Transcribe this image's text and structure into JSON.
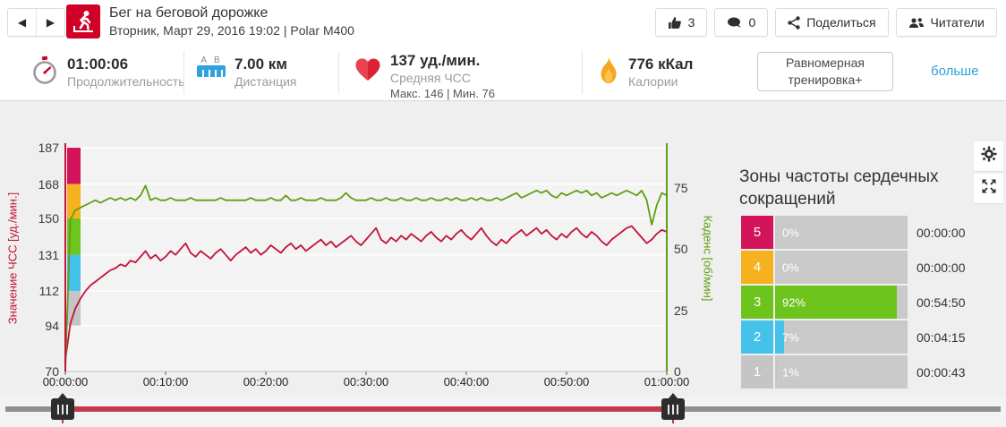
{
  "header": {
    "nav": {
      "prev_icon": "◀",
      "next_icon": "▶"
    },
    "sport_title": "Бег на беговой дорожке",
    "subtitle": "Вторник, Март 29, 2016 19:02 | Polar M400",
    "like_count": "3",
    "comment_count": "0",
    "share_label": "Поделиться",
    "readers_label": "Читатели"
  },
  "stats": {
    "duration": {
      "value": "01:00:06",
      "label": "Продолжительность"
    },
    "distance": {
      "value": "7.00 км",
      "label": "Дистанция",
      "marker_a": "A",
      "marker_b": "B"
    },
    "heart_rate": {
      "value": "137 уд./мин.",
      "label": "Средняя ЧСС",
      "max_min": "Макс. 146   |   Мин. 76"
    },
    "calories": {
      "value": "776 кКал",
      "label": "Калории"
    },
    "benefit": {
      "line1": "Равномерная",
      "line2": "тренировка+"
    },
    "more_link": "больше"
  },
  "chart_data": {
    "type": "line",
    "x_ticks": [
      "00:00:00",
      "00:10:00",
      "00:20:00",
      "00:30:00",
      "00:40:00",
      "00:50:00",
      "01:00:00"
    ],
    "x_max_seconds": 3600,
    "plot_bg": "#f3f3f3",
    "grid_color": "#ffffff",
    "y_left": {
      "label": "Значение ЧСС [уд./мин.]",
      "ticks": [
        187,
        168,
        150,
        131,
        112,
        94,
        70
      ],
      "min": 70,
      "max": 187,
      "color": "#c41239"
    },
    "y_right": {
      "label": "Каденс [об/мин]",
      "ticks": [
        75,
        50,
        25,
        0
      ],
      "min": 0,
      "scale_max": 91.5,
      "color": "#5f9e16"
    },
    "zones_band": [
      {
        "from": 168,
        "to": 187,
        "color": "#d4145a"
      },
      {
        "from": 150,
        "to": 168,
        "color": "#f5b21e"
      },
      {
        "from": 131,
        "to": 150,
        "color": "#6ec51e"
      },
      {
        "from": 112,
        "to": 131,
        "color": "#45c2ea"
      },
      {
        "from": 94,
        "to": 112,
        "color": "#c5c5c5"
      }
    ],
    "series": [
      {
        "name": "ЧСС",
        "axis": "left",
        "color": "#c41239",
        "interval_s": 30,
        "values": [
          76,
          95,
          103,
          108,
          112,
          115,
          117,
          119,
          121,
          123,
          124,
          126,
          125,
          128,
          127,
          130,
          133,
          129,
          131,
          128,
          130,
          133,
          131,
          134,
          137,
          132,
          130,
          133,
          131,
          129,
          132,
          134,
          131,
          128,
          131,
          133,
          135,
          132,
          134,
          131,
          133,
          136,
          134,
          132,
          135,
          137,
          134,
          136,
          133,
          135,
          137,
          139,
          136,
          138,
          135,
          137,
          139,
          141,
          138,
          136,
          139,
          142,
          145,
          139,
          137,
          140,
          138,
          141,
          139,
          142,
          140,
          138,
          141,
          143,
          140,
          138,
          141,
          139,
          142,
          144,
          141,
          139,
          142,
          145,
          141,
          138,
          136,
          139,
          137,
          140,
          142,
          144,
          141,
          143,
          145,
          142,
          144,
          141,
          139,
          142,
          140,
          143,
          145,
          142,
          140,
          143,
          141,
          138,
          136,
          139,
          141,
          143,
          145,
          146,
          143,
          140,
          137,
          139,
          142,
          144,
          143
        ]
      },
      {
        "name": "Каденс",
        "axis": "right",
        "color": "#5f9e16",
        "interval_s": 30,
        "values": [
          0,
          62,
          66,
          67,
          68,
          69,
          70,
          69,
          70,
          71,
          70,
          71,
          70,
          71,
          70,
          72,
          76,
          70,
          71,
          70,
          70,
          71,
          70,
          70,
          70,
          71,
          70,
          70,
          70,
          70,
          70,
          71,
          70,
          70,
          70,
          70,
          70,
          71,
          70,
          70,
          70,
          71,
          70,
          70,
          72,
          70,
          70,
          71,
          70,
          70,
          70,
          71,
          70,
          70,
          70,
          71,
          73,
          71,
          70,
          70,
          70,
          71,
          70,
          70,
          71,
          70,
          70,
          71,
          70,
          70,
          71,
          70,
          70,
          71,
          70,
          70,
          71,
          70,
          71,
          70,
          70,
          71,
          70,
          71,
          70,
          70,
          71,
          70,
          71,
          72,
          73,
          71,
          72,
          73,
          74,
          73,
          74,
          72,
          71,
          73,
          72,
          73,
          74,
          73,
          74,
          72,
          73,
          71,
          72,
          73,
          72,
          73,
          74,
          73,
          72,
          74,
          70,
          60,
          68,
          73,
          72
        ]
      }
    ]
  },
  "zones_panel": {
    "title": "Зоны частоты сердечных сокращений",
    "rows": [
      {
        "zone": "5",
        "percent": "0%",
        "pct": 0,
        "time": "00:00:00",
        "color": "#d4145a"
      },
      {
        "zone": "4",
        "percent": "0%",
        "pct": 0,
        "time": "00:00:00",
        "color": "#f5b21e"
      },
      {
        "zone": "3",
        "percent": "92%",
        "pct": 92,
        "time": "00:54:50",
        "color": "#6cc41c"
      },
      {
        "zone": "2",
        "percent": "7%",
        "pct": 7,
        "time": "00:04:15",
        "color": "#45c2ea"
      },
      {
        "zone": "1",
        "percent": "1%",
        "pct": 1,
        "time": "00:00:43",
        "color": "#c5c5c5"
      }
    ]
  },
  "slider": {
    "handles_x": [
      70,
      752
    ],
    "range_color": "#c23a50",
    "track_color": "#8f8f8f"
  }
}
